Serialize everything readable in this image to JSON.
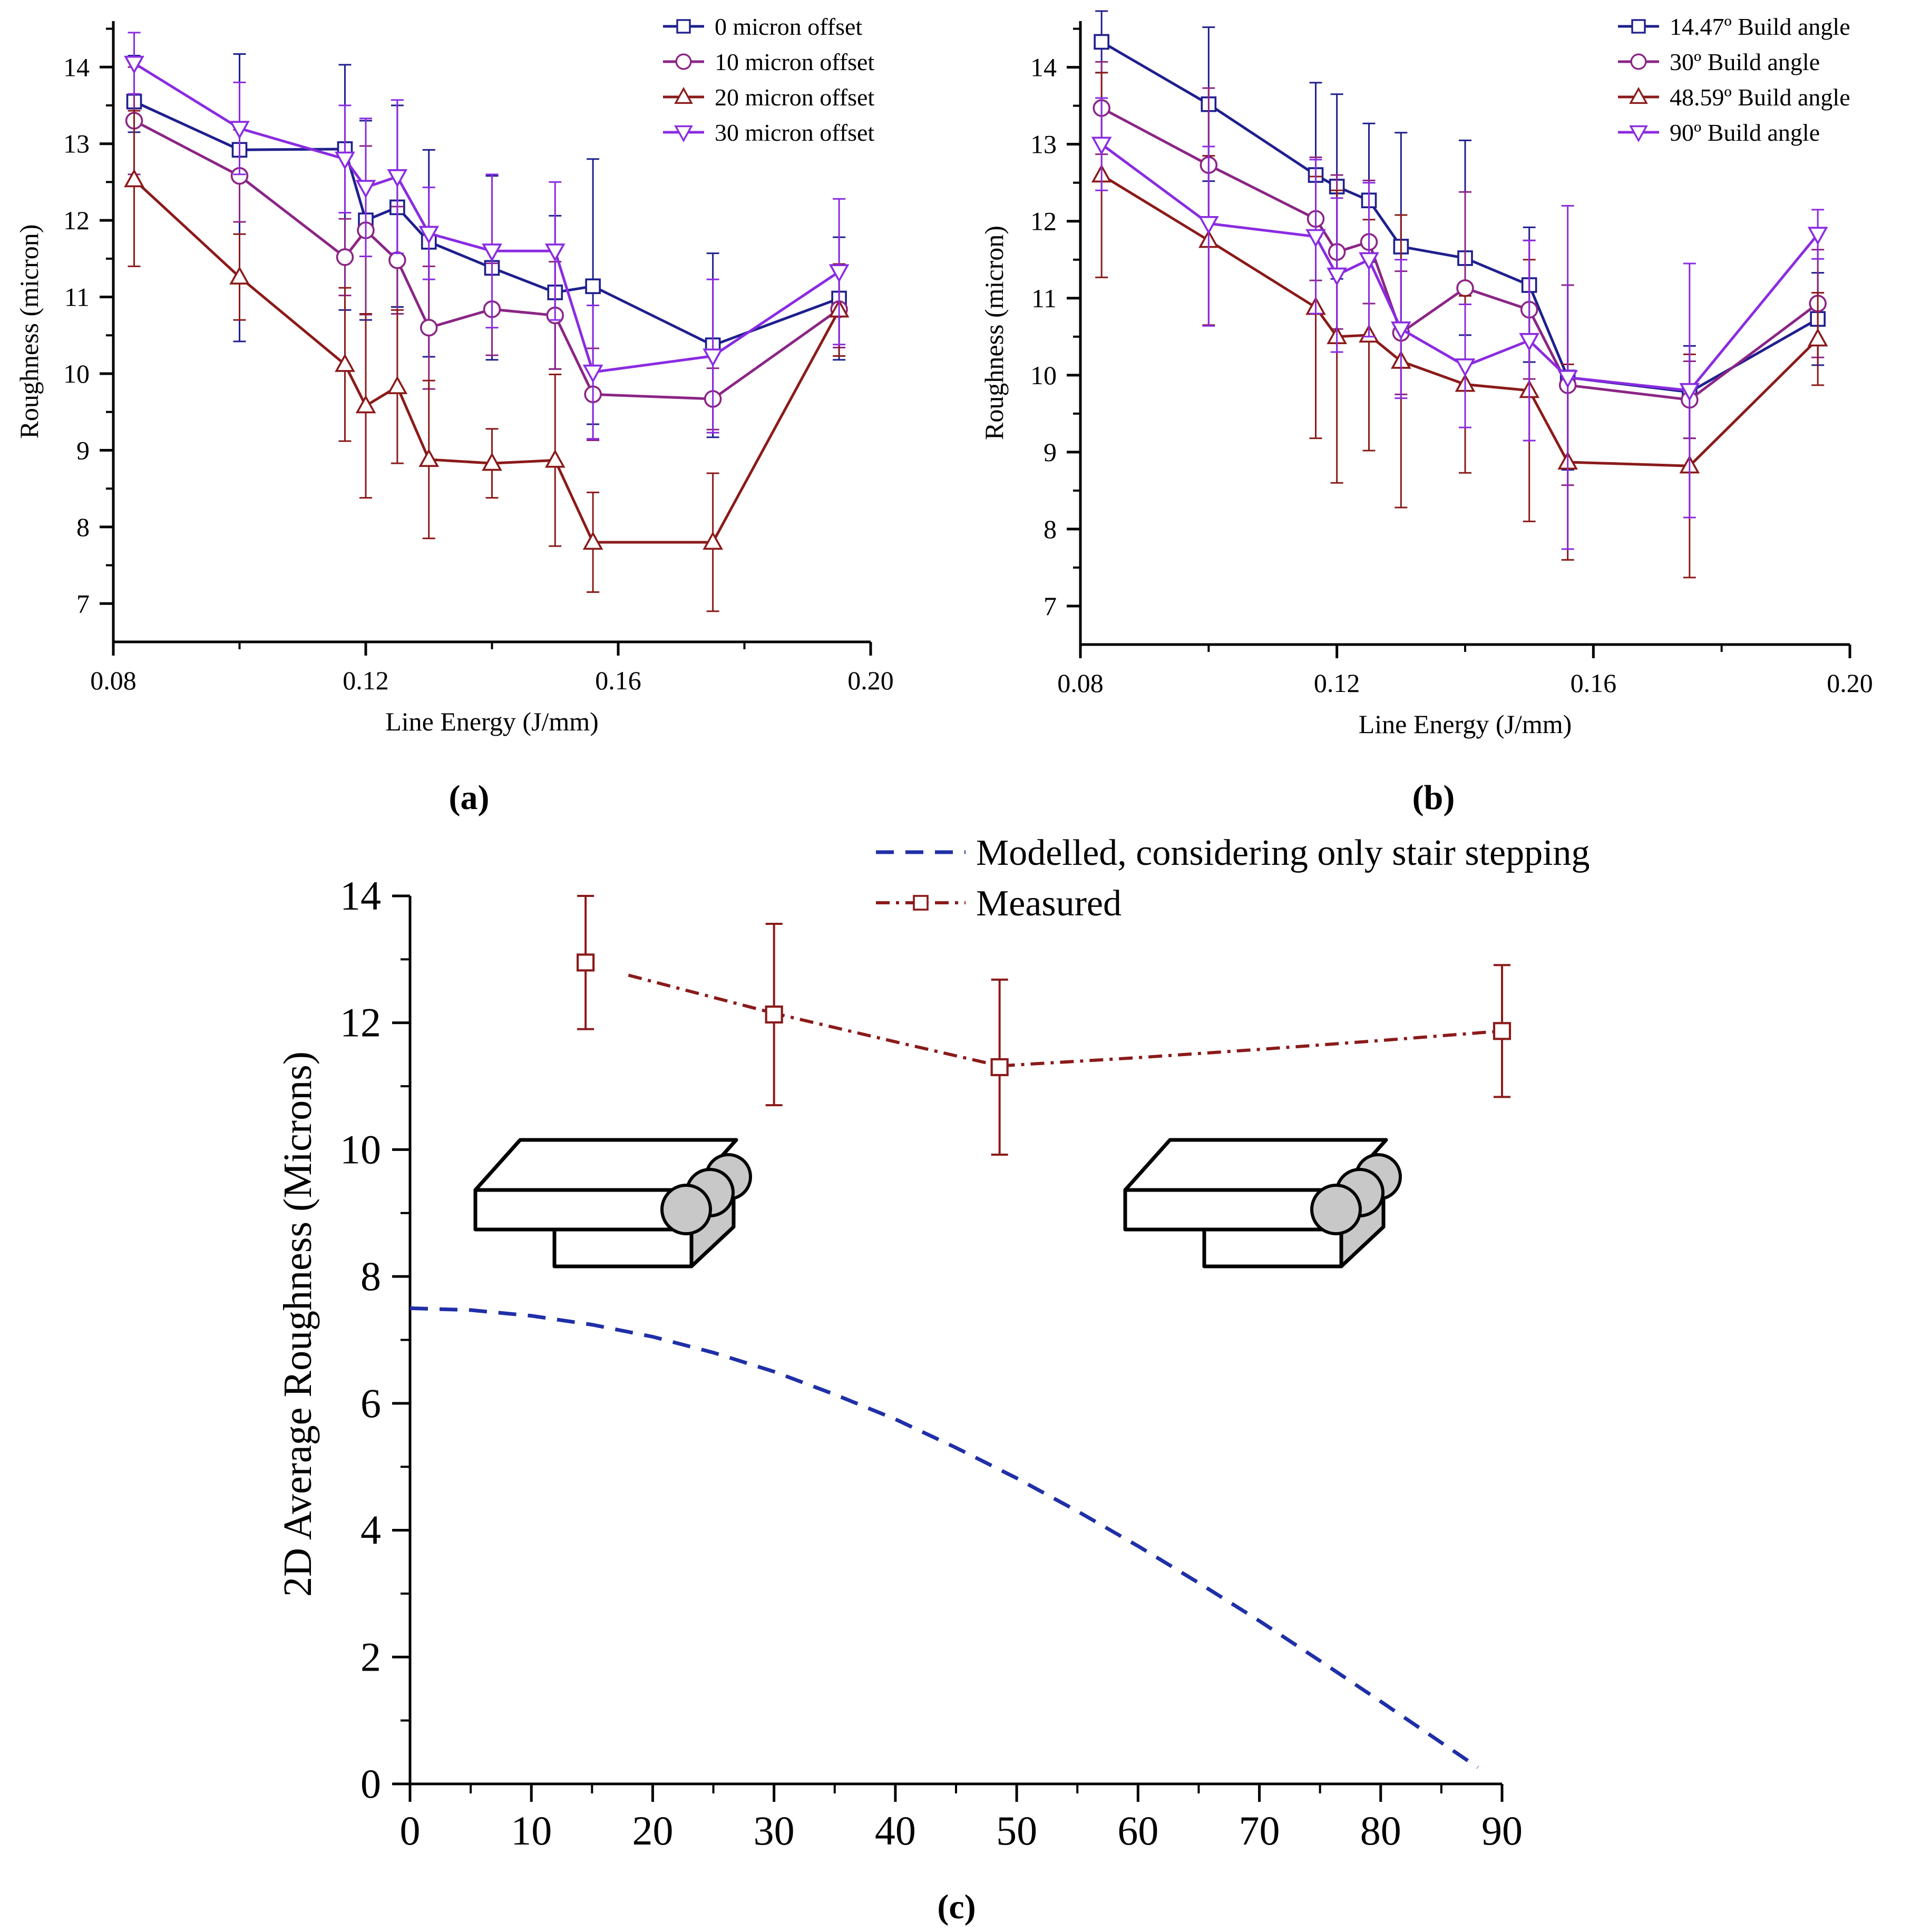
{
  "colors": {
    "navy": "#1f1f8f",
    "purple": "#8b2585",
    "darkred": "#8b1a1a",
    "violet": "#8a2be2",
    "modelled": "#1f2fa8",
    "measured": "#8b1a1a",
    "block_face": "#ffffff",
    "block_side": "#c8c8c8"
  },
  "chart_data": [
    {
      "id": "a",
      "panel_label": "(a)",
      "type": "line",
      "title": "",
      "xlabel": "Line Energy (J/mm)",
      "ylabel": "Roughness (micron)",
      "xlim": [
        0.08,
        0.2
      ],
      "ylim": [
        6.5,
        14.6
      ],
      "xticks": [
        "0.08",
        "0.12",
        "0.16",
        "0.20"
      ],
      "xtick_values": [
        0.08,
        0.12,
        0.16,
        0.2
      ],
      "yticks": [
        "7",
        "8",
        "9",
        "10",
        "11",
        "12",
        "13",
        "14"
      ],
      "ytick_values": [
        7,
        8,
        9,
        10,
        11,
        12,
        13,
        14
      ],
      "grid": false,
      "legend_position": "top-right",
      "x": [
        0.0833,
        0.1,
        0.1167,
        0.12,
        0.125,
        0.13,
        0.14,
        0.15,
        0.156,
        0.175,
        0.195
      ],
      "series": [
        {
          "name": "0 micron offset",
          "marker": "square",
          "color_key": "navy",
          "values": [
            13.55,
            12.92,
            12.93,
            12.0,
            12.17,
            11.72,
            11.38,
            11.06,
            11.14,
            10.37,
            10.98
          ],
          "err_low": [
            0.4,
            2.5,
            2.1,
            1.3,
            1.3,
            1.5,
            1.2,
            1.0,
            1.8,
            1.2,
            0.8
          ],
          "err_high": [
            0.6,
            1.25,
            1.1,
            1.3,
            1.33,
            1.2,
            1.2,
            1.0,
            1.66,
            1.2,
            0.8
          ]
        },
        {
          "name": "10 micron offset",
          "marker": "circle",
          "color_key": "purple",
          "values": [
            13.3,
            12.58,
            11.52,
            11.87,
            11.48,
            10.6,
            10.84,
            10.76,
            9.73,
            9.67,
            10.84
          ],
          "err_low": [
            0.7,
            0.6,
            0.5,
            1.1,
            0.7,
            0.8,
            0.6,
            0.7,
            0.6,
            0.4,
            0.5
          ],
          "err_high": [
            0.7,
            0.6,
            0.5,
            1.1,
            0.7,
            0.8,
            0.6,
            0.7,
            0.6,
            0.4,
            0.5
          ]
        },
        {
          "name": "20 micron offset",
          "marker": "triangle-up",
          "color_key": "darkred",
          "values": [
            12.53,
            11.26,
            10.12,
            9.58,
            9.83,
            8.88,
            8.83,
            8.87,
            7.8,
            7.8,
            10.83
          ],
          "err_low": [
            1.13,
            0.56,
            1.0,
            1.2,
            1.0,
            1.03,
            0.45,
            1.12,
            0.65,
            0.9,
            0.6
          ],
          "err_high": [
            0.9,
            0.56,
            1.0,
            1.2,
            1.0,
            1.03,
            0.45,
            1.12,
            0.65,
            0.9,
            0.6
          ]
        },
        {
          "name": "30 micron offset",
          "marker": "triangle-down",
          "color_key": "violet",
          "values": [
            14.05,
            13.2,
            12.8,
            12.43,
            12.57,
            11.83,
            11.6,
            11.6,
            10.02,
            10.23,
            11.33
          ],
          "err_low": [
            0.4,
            0.6,
            0.7,
            0.9,
            1.0,
            0.6,
            1.0,
            0.9,
            0.87,
            1.0,
            0.95
          ],
          "err_high": [
            0.4,
            0.6,
            0.7,
            0.9,
            1.0,
            0.6,
            1.0,
            0.9,
            0.87,
            1.0,
            0.95
          ]
        }
      ]
    },
    {
      "id": "b",
      "panel_label": "(b)",
      "type": "line",
      "title": "",
      "xlabel": "Line Energy (J/mm)",
      "ylabel": "Roughness (micron)",
      "xlim": [
        0.08,
        0.2
      ],
      "ylim": [
        6.5,
        14.6
      ],
      "xticks": [
        "0.08",
        "0.12",
        "0.16",
        "0.20"
      ],
      "xtick_values": [
        0.08,
        0.12,
        0.16,
        0.2
      ],
      "yticks": [
        "7",
        "8",
        "9",
        "10",
        "11",
        "12",
        "13",
        "14"
      ],
      "ytick_values": [
        7,
        8,
        9,
        10,
        11,
        12,
        13,
        14
      ],
      "grid": false,
      "legend_position": "top-right",
      "x": [
        0.0833,
        0.1,
        0.1167,
        0.12,
        0.125,
        0.13,
        0.14,
        0.15,
        0.156,
        0.175,
        0.195
      ],
      "series": [
        {
          "name": "14.47º Build angle",
          "marker": "square",
          "color_key": "navy",
          "values": [
            14.33,
            13.52,
            12.6,
            12.45,
            12.27,
            11.67,
            11.52,
            11.17,
            9.97,
            9.78,
            10.73
          ],
          "err_low": [
            0.4,
            1.0,
            0.8,
            1.2,
            0.8,
            1.5,
            1.0,
            1.0,
            1.2,
            0.6,
            0.6
          ],
          "err_high": [
            0.4,
            1.0,
            1.2,
            1.2,
            1.0,
            1.48,
            1.53,
            0.75,
            1.2,
            0.6,
            0.6
          ]
        },
        {
          "name": "30º Build angle",
          "marker": "circle",
          "color_key": "purple",
          "values": [
            13.47,
            12.73,
            12.03,
            11.6,
            11.73,
            10.55,
            11.13,
            10.85,
            9.87,
            9.68,
            10.93
          ],
          "err_low": [
            0.6,
            1.0,
            0.8,
            1.0,
            0.8,
            0.8,
            1.25,
            0.9,
            1.3,
            0.5,
            0.7
          ],
          "err_high": [
            0.6,
            1.0,
            0.8,
            1.0,
            0.8,
            0.8,
            1.25,
            0.9,
            1.3,
            0.5,
            0.7
          ]
        },
        {
          "name": "48.59º Build angle",
          "marker": "triangle-up",
          "color_key": "darkred",
          "values": [
            12.6,
            11.75,
            10.88,
            10.5,
            10.52,
            10.18,
            9.88,
            9.8,
            8.87,
            8.82,
            10.47
          ],
          "err_low": [
            1.33,
            1.1,
            1.7,
            1.9,
            1.5,
            1.9,
            1.15,
            1.7,
            1.27,
            1.45,
            0.6
          ],
          "err_high": [
            1.33,
            1.1,
            1.7,
            1.9,
            1.5,
            1.9,
            1.15,
            1.7,
            1.27,
            1.45,
            0.6
          ]
        },
        {
          "name": "90º Build angle",
          "marker": "triangle-down",
          "color_key": "violet",
          "values": [
            13.0,
            11.97,
            11.8,
            11.3,
            11.5,
            10.6,
            10.12,
            10.45,
            9.97,
            9.8,
            11.83
          ],
          "err_low": [
            0.6,
            1.33,
            1.0,
            1.0,
            1.0,
            0.9,
            0.8,
            1.3,
            2.23,
            1.65,
            0.32
          ],
          "err_high": [
            0.6,
            1.0,
            1.0,
            1.0,
            1.0,
            0.9,
            0.8,
            1.3,
            2.23,
            1.65,
            0.32
          ]
        }
      ]
    },
    {
      "id": "c",
      "panel_label": "(c)",
      "type": "line",
      "title": "",
      "xlabel": "",
      "ylabel": "2D Average Roughness (Microns)",
      "xlim": [
        0,
        90
      ],
      "ylim": [
        0,
        14
      ],
      "xticks": [
        "0",
        "10",
        "20",
        "30",
        "40",
        "50",
        "60",
        "70",
        "80",
        "90"
      ],
      "xtick_values": [
        0,
        10,
        20,
        30,
        40,
        50,
        60,
        70,
        80,
        90
      ],
      "yticks": [
        "0",
        "2",
        "4",
        "6",
        "8",
        "10",
        "12",
        "14"
      ],
      "ytick_values": [
        0,
        2,
        4,
        6,
        8,
        10,
        12,
        14
      ],
      "grid": false,
      "legend_position": "top",
      "series": [
        {
          "name": "Modelled, considering only stair stepping",
          "style": "dashed",
          "color_key": "modelled",
          "x": [
            0,
            5,
            10,
            15,
            20,
            25,
            30,
            35,
            40,
            45,
            50,
            55,
            60,
            65,
            70,
            75,
            80,
            85,
            88
          ],
          "values": [
            7.5,
            7.47,
            7.38,
            7.24,
            7.05,
            6.8,
            6.5,
            6.14,
            5.75,
            5.3,
            4.82,
            4.3,
            3.75,
            3.17,
            2.57,
            1.94,
            1.3,
            0.65,
            0.26
          ]
        },
        {
          "name": "Measured",
          "style": "dashdot",
          "marker": "square",
          "color_key": "measured",
          "x": [
            14.47,
            30,
            48.59,
            90
          ],
          "values": [
            12.95,
            12.13,
            11.3,
            11.87
          ],
          "err_low": [
            1.05,
            1.43,
            1.38,
            1.04
          ],
          "err_high": [
            1.05,
            1.43,
            1.38,
            1.04
          ],
          "trend_x": [
            18,
            30,
            40,
            48.59,
            60,
            70,
            80,
            90
          ],
          "trend_values": [
            12.75,
            12.15,
            11.7,
            11.32,
            11.45,
            11.58,
            11.72,
            11.87
          ]
        }
      ]
    }
  ]
}
